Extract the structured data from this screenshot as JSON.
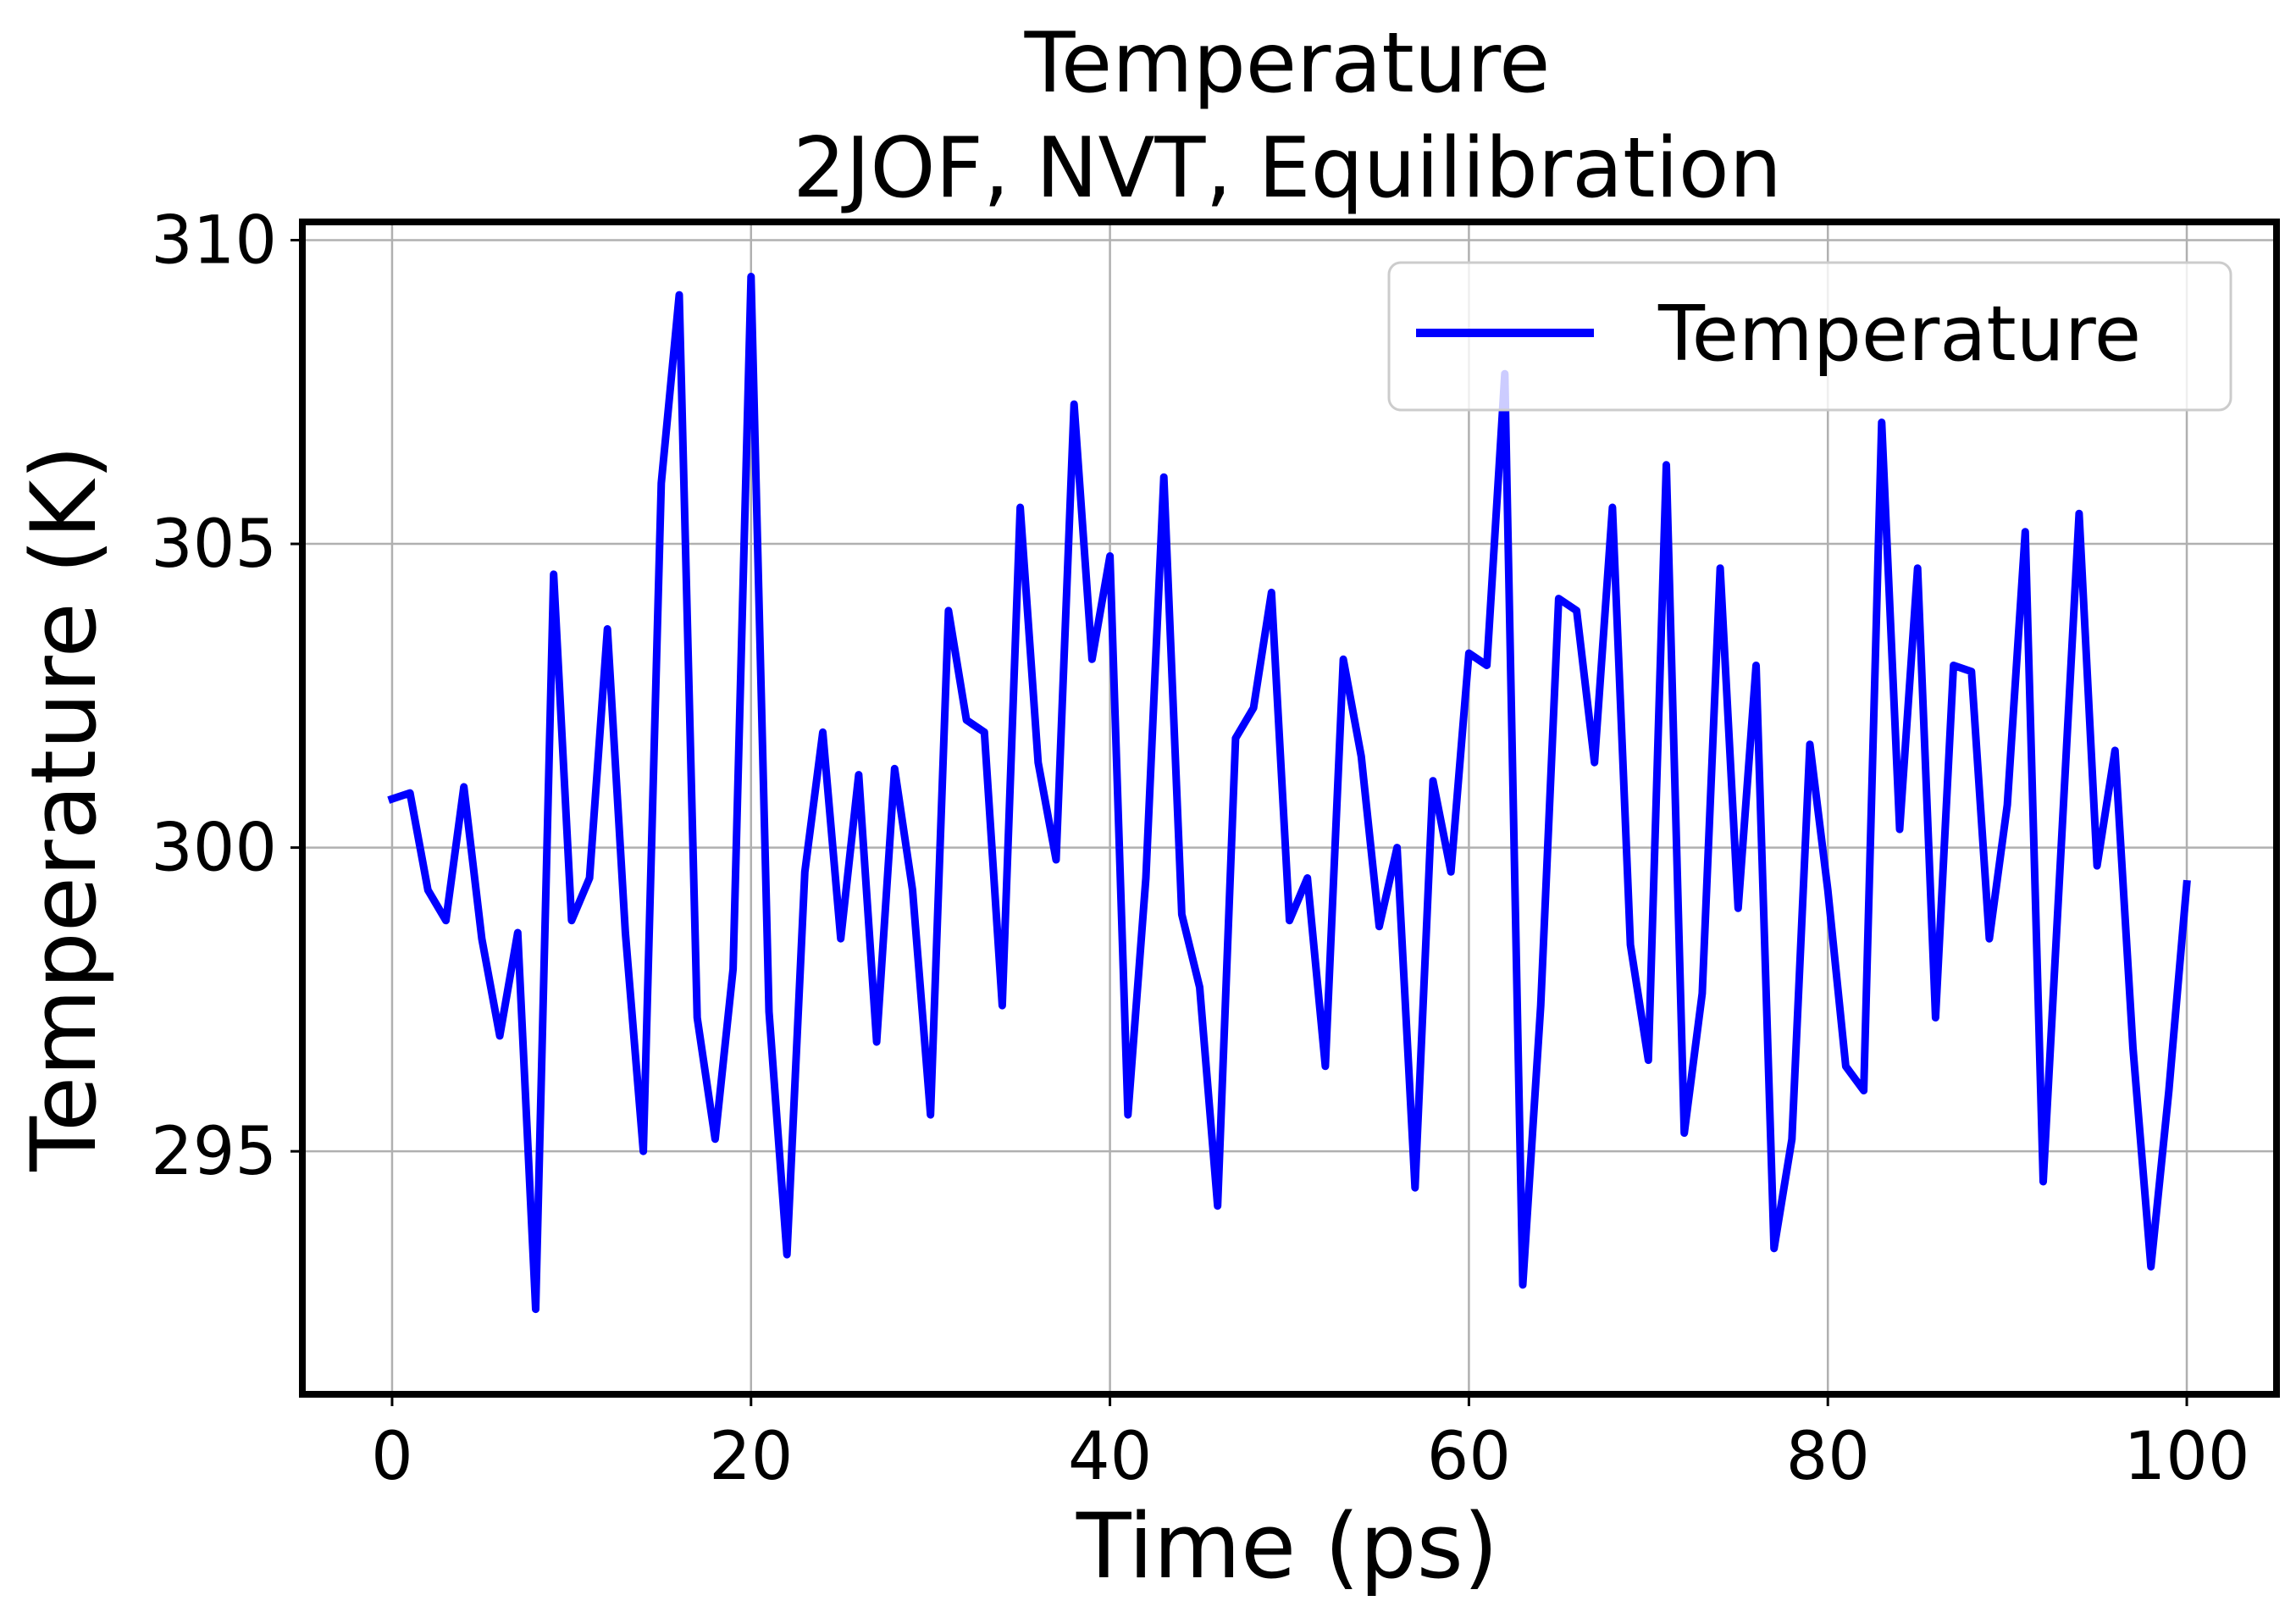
{
  "chart_data": {
    "type": "line",
    "title": "Temperature",
    "subtitle": "2JOF, NVT, Equilibration",
    "xlabel": "Time (ps)",
    "ylabel": "Temperature (K)",
    "xlim": [
      -5,
      105
    ],
    "ylim": [
      291.0,
      310.3
    ],
    "xticks": [
      0,
      20,
      40,
      60,
      80,
      100
    ],
    "yticks": [
      295,
      300,
      305,
      310
    ],
    "grid": true,
    "legend_position": "top-right",
    "series": [
      {
        "name": "Temperature",
        "color": "#0000ff",
        "x": [
          0,
          1,
          2,
          3,
          4,
          5,
          6,
          7,
          8,
          9,
          10,
          11,
          12,
          13,
          14,
          15,
          16,
          17,
          18,
          19,
          20,
          21,
          22,
          23,
          24,
          25,
          26,
          27,
          28,
          29,
          30,
          31,
          32,
          33,
          34,
          35,
          36,
          37,
          38,
          39,
          40,
          41,
          42,
          43,
          44,
          45,
          46,
          47,
          48,
          49,
          50,
          51,
          52,
          53,
          54,
          55,
          56,
          57,
          58,
          59,
          60,
          61,
          62,
          63,
          64,
          65,
          66,
          67,
          68,
          69,
          70,
          71,
          72,
          73,
          74,
          75,
          76,
          77,
          78,
          79,
          80,
          81,
          82,
          83,
          84,
          85,
          86,
          87,
          88,
          89,
          90,
          91,
          92,
          93,
          94,
          95,
          96,
          97,
          98,
          99,
          100
        ],
        "y": [
          300.8,
          300.9,
          299.3,
          298.8,
          301.0,
          298.5,
          296.9,
          298.6,
          292.4,
          304.5,
          298.8,
          299.5,
          303.6,
          298.6,
          295.0,
          306.0,
          309.1,
          297.2,
          295.2,
          298.0,
          309.4,
          297.3,
          293.3,
          299.6,
          301.9,
          298.5,
          301.2,
          296.8,
          301.3,
          299.3,
          295.6,
          303.9,
          302.1,
          301.9,
          297.4,
          305.6,
          301.4,
          299.8,
          307.3,
          303.1,
          304.8,
          295.6,
          299.5,
          306.1,
          298.9,
          297.7,
          294.1,
          301.8,
          302.3,
          304.2,
          298.8,
          299.5,
          296.4,
          303.1,
          301.5,
          298.7,
          300.0,
          294.4,
          301.1,
          299.6,
          303.2,
          303.0,
          307.8,
          292.8,
          297.4,
          304.1,
          303.9,
          301.4,
          305.6,
          298.4,
          296.5,
          306.3,
          295.3,
          297.6,
          304.6,
          299.0,
          303.0,
          293.4,
          295.2,
          301.7,
          299.3,
          296.4,
          296.0,
          307.0,
          300.3,
          304.6,
          297.2,
          303.0,
          302.9,
          298.5,
          300.7,
          305.2,
          294.5,
          300.0,
          305.5,
          299.7,
          301.6,
          296.7,
          293.1,
          296.0,
          299.4
        ]
      }
    ]
  }
}
